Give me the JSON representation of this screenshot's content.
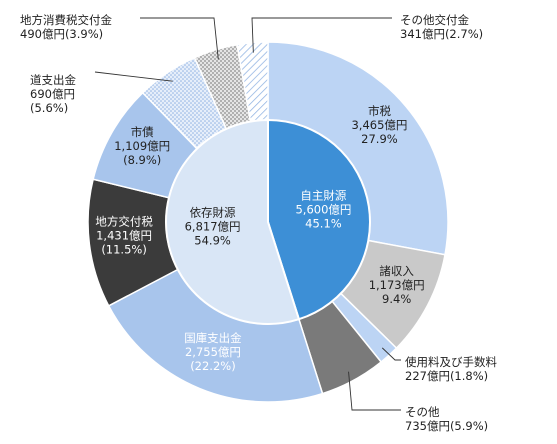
{
  "chart_data": {
    "type": "pie",
    "colors": {
      "outer_blue": "#a8c5ec",
      "outer_light": "#bcd4f4",
      "gray_light": "#c9c9c9",
      "gray_mid": "#7a7a7a",
      "gray_dark": "#3b3b3b",
      "inner_blue": "#3d8fd6",
      "inner_light": "#d9e6f6",
      "stroke": "#ffffff",
      "text_dark": "#222222",
      "text_white": "#ffffff"
    },
    "inner": [
      {
        "name": "自主財源",
        "value": 5600,
        "value_text": "5,600億円",
        "percent_text": "45.1%",
        "color": "#3d8fd6",
        "text_color": "#ffffff"
      },
      {
        "name": "依存財源",
        "value": 6817,
        "value_text": "6,817億円",
        "percent_text": "54.9%",
        "color": "#d9e6f6",
        "text_color": "#222222"
      }
    ],
    "outer": [
      {
        "name": "市税",
        "value": 3465,
        "value_text": "3,465億円",
        "percent_text": "27.9%",
        "fill": "#bcd4f4",
        "pattern": "none",
        "text_color": "#222222",
        "label_mode": "inside"
      },
      {
        "name": "諸収入",
        "value": 1173,
        "value_text": "1,173億円",
        "percent_text": "9.4%",
        "fill": "#c9c9c9",
        "pattern": "none",
        "text_color": "#222222",
        "label_mode": "inside"
      },
      {
        "name": "使用料及び手数料",
        "value": 227,
        "value_text": "227億円",
        "percent_text": "(1.8%)",
        "fill": "#bcd4f4",
        "pattern": "none",
        "text_color": "#222222",
        "label_mode": "outside"
      },
      {
        "name": "その他",
        "value": 735,
        "value_text": "735億円",
        "percent_text": "(5.9%)",
        "fill": "#7a7a7a",
        "pattern": "none",
        "text_color": "#222222",
        "label_mode": "outside"
      },
      {
        "name": "国庫支出金",
        "value": 2755,
        "value_text": "2,755億円",
        "percent_text": "(22.2%)",
        "fill": "#a8c5ec",
        "pattern": "none",
        "text_color": "#ffffff",
        "label_mode": "inside"
      },
      {
        "name": "地方交付税",
        "value": 1431,
        "value_text": "1,431億円",
        "percent_text": "(11.5%)",
        "fill": "#3b3b3b",
        "pattern": "none",
        "text_color": "#ffffff",
        "label_mode": "inside"
      },
      {
        "name": "市債",
        "value": 1109,
        "value_text": "1,109億円",
        "percent_text": "(8.9%)",
        "fill": "#a8c5ec",
        "pattern": "none",
        "text_color": "#222222",
        "label_mode": "inside"
      },
      {
        "name": "道支出金",
        "value": 690,
        "value_text": "690億円",
        "percent_text": "(5.6%)",
        "fill": "#d9e6f6",
        "pattern": "dots",
        "text_color": "#222222",
        "label_mode": "outside"
      },
      {
        "name": "地方消費税交付金",
        "value": 490,
        "value_text": "490億円",
        "percent_text": "(3.9%)",
        "fill": "#c9c9c9",
        "pattern": "dots",
        "text_color": "#222222",
        "label_mode": "outside"
      },
      {
        "name": "その他交付金",
        "value": 341,
        "value_text": "341億円",
        "percent_text": "(2.7%)",
        "fill": "#ffffff",
        "pattern": "hatch",
        "text_color": "#222222",
        "label_mode": "outside"
      }
    ]
  }
}
